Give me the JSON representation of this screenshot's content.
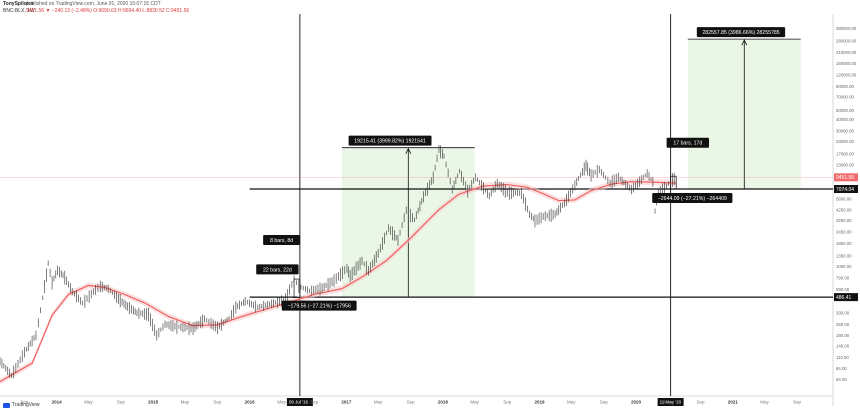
{
  "header": {
    "author": "TonySpilotro",
    "published": "published on TradingView.com, June 01, 2020 10:07:15 CDT",
    "symbol": "BNC:BLX, 1W",
    "ohlc": "9451.56 ▼ −240.13 (−2.48%) O:9690.63 H:9694.40 L:8830.52 C:9451.56"
  },
  "branding": {
    "logo_text": "TradingView"
  },
  "colors": {
    "price": "#2b2b2b",
    "ema": "#f06262",
    "ema_band": "#f9c8c8",
    "projection_fill": "#eaf6e6",
    "label_bg": "#111111",
    "label_text": "#ffffff",
    "price_tag": "#f26b6b"
  },
  "chart_data": {
    "type": "line",
    "title": "",
    "scale": "log",
    "ylim": [
      42,
      540000
    ],
    "x_range": [
      "2013-06-01",
      "2022-01-15"
    ],
    "x_tick_labels": [
      "Sep",
      "2014",
      "May",
      "Sep",
      "2015",
      "May",
      "Sep",
      "2016",
      "May",
      "Sep",
      "2017",
      "May",
      "Sep",
      "2018",
      "May",
      "Sep",
      "2019",
      "May",
      "Sep",
      "2020",
      "May",
      "Sep",
      "2021",
      "May",
      "Sep"
    ],
    "y_tick_labels": [
      "540000.00",
      "380000.00",
      "280000.00",
      "210000.00",
      "160000.00",
      "120000.00",
      "90000.00",
      "70000.00",
      "50000.00",
      "40000.00",
      "30000.00",
      "23000.00",
      "17000.00",
      "13000.00",
      "7000.00",
      "5600.00",
      "4250.00",
      "3250.00",
      "2450.00",
      "1850.00",
      "1350.00",
      "1050.00",
      "790.00",
      "590.00",
      "330.00",
      "250.00",
      "190.00",
      "146.00",
      "110.00",
      "84.00",
      "64.00"
    ],
    "series": [
      {
        "style": "bars",
        "points": [
          [
            "2013-06-01",
            100
          ],
          [
            "2013-07-15",
            70
          ],
          [
            "2013-09-01",
            125
          ],
          [
            "2013-10-15",
            190
          ],
          [
            "2013-11-10",
            480
          ],
          [
            "2013-11-30",
            1130
          ],
          [
            "2013-12-15",
            700
          ],
          [
            "2014-01-05",
            950
          ],
          [
            "2014-02-01",
            800
          ],
          [
            "2014-03-01",
            560
          ],
          [
            "2014-04-10",
            420
          ],
          [
            "2014-05-20",
            560
          ],
          [
            "2014-06-15",
            640
          ],
          [
            "2014-07-15",
            600
          ],
          [
            "2014-08-15",
            490
          ],
          [
            "2014-09-20",
            400
          ],
          [
            "2014-11-01",
            330
          ],
          [
            "2014-12-15",
            320
          ],
          [
            "2015-01-15",
            190
          ],
          [
            "2015-02-15",
            250
          ],
          [
            "2015-04-01",
            235
          ],
          [
            "2015-06-01",
            225
          ],
          [
            "2015-07-15",
            285
          ],
          [
            "2015-09-01",
            230
          ],
          [
            "2015-10-15",
            290
          ],
          [
            "2015-11-10",
            380
          ],
          [
            "2015-12-15",
            440
          ],
          [
            "2016-02-01",
            380
          ],
          [
            "2016-04-01",
            420
          ],
          [
            "2016-05-15",
            460
          ],
          [
            "2016-06-17",
            760
          ],
          [
            "2016-07-05",
            640
          ],
          [
            "2016-08-15",
            570
          ],
          [
            "2016-10-01",
            610
          ],
          [
            "2016-11-15",
            740
          ],
          [
            "2017-01-03",
            1000
          ],
          [
            "2017-01-15",
            830
          ],
          [
            "2017-03-01",
            1200
          ],
          [
            "2017-03-25",
            940
          ],
          [
            "2017-05-01",
            1450
          ],
          [
            "2017-06-10",
            2700
          ],
          [
            "2017-07-15",
            2000
          ],
          [
            "2017-08-15",
            4200
          ],
          [
            "2017-09-15",
            3300
          ],
          [
            "2017-10-20",
            5900
          ],
          [
            "2017-11-25",
            9500
          ],
          [
            "2017-12-17",
            19200
          ],
          [
            "2018-01-05",
            16000
          ],
          [
            "2018-02-05",
            7000
          ],
          [
            "2018-03-05",
            11000
          ],
          [
            "2018-04-05",
            6800
          ],
          [
            "2018-05-05",
            9500
          ],
          [
            "2018-06-25",
            6000
          ],
          [
            "2018-07-25",
            8200
          ],
          [
            "2018-09-01",
            6500
          ],
          [
            "2018-10-25",
            6400
          ],
          [
            "2018-11-25",
            3800
          ],
          [
            "2018-12-15",
            3250
          ],
          [
            "2019-01-15",
            3600
          ],
          [
            "2019-03-01",
            3800
          ],
          [
            "2019-04-05",
            5000
          ],
          [
            "2019-05-15",
            7800
          ],
          [
            "2019-06-26",
            12800
          ],
          [
            "2019-07-15",
            10000
          ],
          [
            "2019-08-15",
            11500
          ],
          [
            "2019-09-25",
            8200
          ],
          [
            "2019-10-26",
            9500
          ],
          [
            "2019-12-15",
            7000
          ],
          [
            "2020-02-12",
            10400
          ],
          [
            "2020-03-05",
            8500
          ],
          [
            "2020-03-13",
            4100
          ],
          [
            "2020-03-25",
            6500
          ],
          [
            "2020-04-25",
            7600
          ],
          [
            "2020-05-11",
            8700
          ],
          [
            "2020-05-31",
            9451
          ]
        ]
      },
      {
        "style": "moving-average",
        "color": "#f06262",
        "points": [
          [
            "2013-06-01",
            60
          ],
          [
            "2013-10-01",
            95
          ],
          [
            "2013-12-15",
            310
          ],
          [
            "2014-02-15",
            520
          ],
          [
            "2014-05-01",
            650
          ],
          [
            "2014-07-01",
            620
          ],
          [
            "2014-09-15",
            520
          ],
          [
            "2014-12-01",
            420
          ],
          [
            "2015-03-01",
            300
          ],
          [
            "2015-06-01",
            240
          ],
          [
            "2015-09-01",
            245
          ],
          [
            "2015-12-01",
            300
          ],
          [
            "2016-03-01",
            360
          ],
          [
            "2016-06-01",
            430
          ],
          [
            "2016-09-01",
            520
          ],
          [
            "2016-12-15",
            600
          ],
          [
            "2017-03-01",
            800
          ],
          [
            "2017-06-01",
            1200
          ],
          [
            "2017-09-01",
            2100
          ],
          [
            "2017-12-15",
            4200
          ],
          [
            "2018-03-01",
            6200
          ],
          [
            "2018-06-01",
            7600
          ],
          [
            "2018-09-01",
            7900
          ],
          [
            "2018-11-15",
            7400
          ],
          [
            "2019-01-15",
            6300
          ],
          [
            "2019-03-15",
            5300
          ],
          [
            "2019-05-15",
            5400
          ],
          [
            "2019-07-15",
            6800
          ],
          [
            "2019-10-01",
            8000
          ],
          [
            "2019-12-15",
            8500
          ],
          [
            "2020-03-01",
            8400
          ],
          [
            "2020-05-31",
            8200
          ]
        ]
      }
    ],
    "levels": [
      {
        "label": "486.41",
        "value": 486.41
      },
      {
        "label": "7074.34",
        "value": 7074.34
      }
    ],
    "vertical_markers": [
      {
        "date": "2016-07-09",
        "label": "09 Jul '16"
      },
      {
        "date": "2020-05-11",
        "label": "11 May '20"
      }
    ],
    "annotations": [
      {
        "kind": "measure",
        "text": "19215.41 (3999.82%) 1921541",
        "x0": "2016-12-15",
        "x1": "2018-05-01",
        "y0": 486.41,
        "y1": 19700
      },
      {
        "kind": "measure",
        "text": "282557.85 (3986.66%) 28255785",
        "x0": "2020-07-15",
        "x1": "2021-09-15",
        "y0": 7074.34,
        "y1": 289632
      },
      {
        "kind": "measure",
        "text": "−179.56 (−27.21%) −17956",
        "x0": "2016-06-20",
        "x1": "2016-07-09",
        "y0": 660,
        "y1": 480
      },
      {
        "kind": "measure",
        "text": "−2644.09 (−27.21%) −264409",
        "x0": "2020-05-11",
        "x1": "2020-06-01",
        "y0": 9720,
        "y1": 7074
      },
      {
        "kind": "count",
        "text": "22 bars, 22d",
        "x0": "2016-06-17",
        "x1": "2016-07-09",
        "y": 620
      },
      {
        "kind": "count",
        "text": "8 bars, 8d",
        "x0": "2016-07-01",
        "x1": "2016-07-09",
        "y": 640
      },
      {
        "kind": "count",
        "text": "17 bars, 17d",
        "x0": "2020-05-11",
        "x1": "2020-05-28",
        "y": 9600
      }
    ],
    "last_price_label": "9451.56",
    "last_price": 9451.56
  }
}
